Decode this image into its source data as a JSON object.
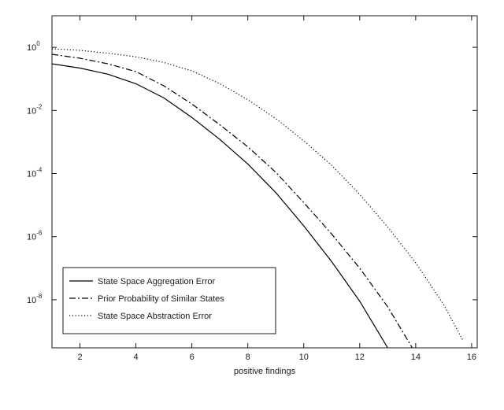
{
  "chart_data": {
    "type": "line",
    "xlabel": "positive findings",
    "ylabel": "",
    "yscale": "log",
    "xlim": [
      1,
      16.2
    ],
    "ylim": [
      3e-10,
      10
    ],
    "grid": false,
    "legend_position": "bottom-left",
    "xticks": [
      2,
      4,
      6,
      8,
      10,
      12,
      14,
      16
    ],
    "xtick_labels": [
      "2",
      "4",
      "6",
      "8",
      "10",
      "12",
      "14",
      "16"
    ],
    "yticks": [
      1,
      0.01,
      0.0001,
      1e-06,
      1e-08
    ],
    "ytick_labels": [
      {
        "base": "10",
        "exp": "0"
      },
      {
        "base": "10",
        "exp": "-2"
      },
      {
        "base": "10",
        "exp": "-4"
      },
      {
        "base": "10",
        "exp": "-6"
      },
      {
        "base": "10",
        "exp": "-8"
      }
    ],
    "series": [
      {
        "name": "State Space Aggregation Error",
        "style": "solid",
        "color": "#000000",
        "x": [
          1,
          2,
          3,
          4,
          5,
          6,
          7,
          8,
          9,
          10,
          11,
          12,
          13,
          13.8
        ],
        "y": [
          0.3,
          0.22,
          0.14,
          0.07,
          0.025,
          0.006,
          0.0012,
          0.0002,
          2.5e-05,
          2.2e-06,
          1.6e-07,
          9e-09,
          3e-10,
          1e-11
        ]
      },
      {
        "name": "Prior Probability of Similar States",
        "style": "dashdot",
        "color": "#000000",
        "x": [
          1,
          2,
          3,
          4,
          5,
          6,
          7,
          8,
          9,
          10,
          11,
          12,
          13,
          14,
          14.5
        ],
        "y": [
          0.6,
          0.45,
          0.3,
          0.17,
          0.06,
          0.016,
          0.0035,
          0.0007,
          0.00011,
          1.2e-05,
          1.2e-06,
          1e-07,
          6e-09,
          2e-10,
          1e-11
        ]
      },
      {
        "name": "State Space Abstraction Error",
        "style": "dotted",
        "color": "#000000",
        "x": [
          1,
          2,
          3,
          4,
          5,
          6,
          7,
          8,
          9,
          10,
          11,
          12,
          13,
          14,
          15,
          15.7
        ],
        "y": [
          0.9,
          0.8,
          0.65,
          0.5,
          0.33,
          0.18,
          0.07,
          0.022,
          0.0055,
          0.0011,
          0.00018,
          2.2e-05,
          2e-06,
          1.5e-07,
          7e-09,
          5e-10
        ]
      }
    ]
  }
}
